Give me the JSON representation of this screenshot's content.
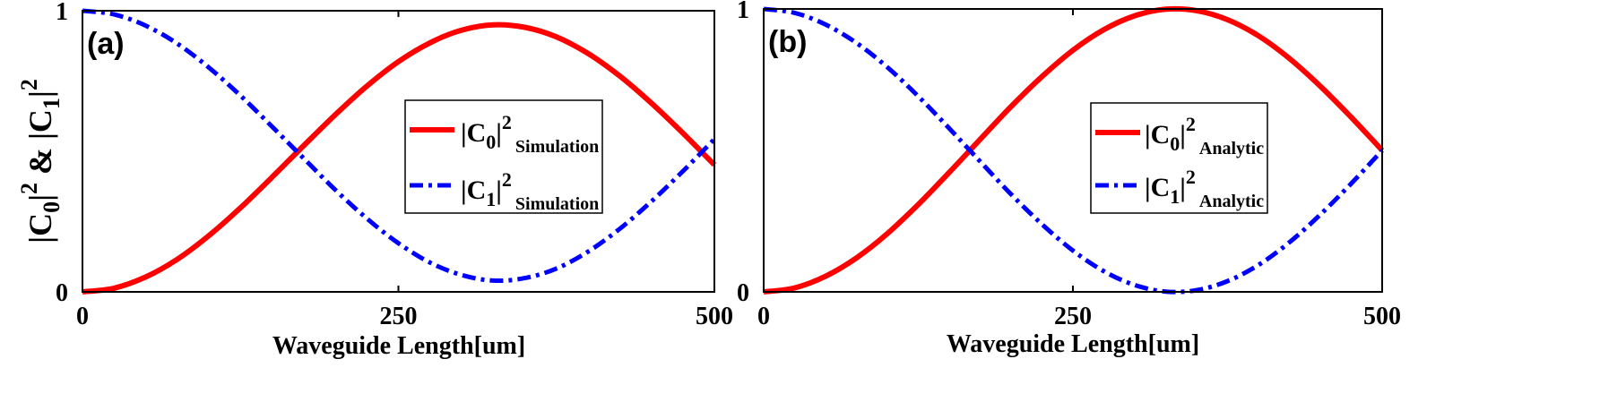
{
  "chart_data": [
    {
      "type": "line",
      "panel_label": "(a)",
      "xlabel": "Waveguide Length[um]",
      "ylabel": {
        "p1": "|C",
        "s1": "0",
        "p2": "|",
        "e1": "2",
        "p3": " & |C",
        "s2": "1",
        "p4": "|",
        "e2": "2"
      },
      "xlim": [
        0,
        500
      ],
      "ylim": [
        0,
        1
      ],
      "xticks": [
        0,
        250,
        500
      ],
      "yticks": [
        0,
        1
      ],
      "grid": false,
      "legend_position": "center-right",
      "x": [
        0,
        25,
        50,
        75,
        100,
        125,
        150,
        175,
        200,
        225,
        250,
        275,
        300,
        325,
        350,
        375,
        400,
        425,
        450,
        475,
        500
      ],
      "series": [
        {
          "legend": {
            "p1": "|C",
            "sub": "0",
            "p2": "|",
            "sup": "2",
            "tag": "Simulation"
          },
          "color": "#ff0000",
          "line_style": "solid",
          "y": [
            0.0,
            0.013,
            0.053,
            0.116,
            0.2,
            0.299,
            0.408,
            0.52,
            0.63,
            0.732,
            0.819,
            0.886,
            0.931,
            0.95,
            0.941,
            0.907,
            0.848,
            0.768,
            0.672,
            0.565,
            0.452
          ]
        },
        {
          "legend": {
            "p1": "|C",
            "sub": "1",
            "p2": "|",
            "sup": "2",
            "tag": "Simulation"
          },
          "color": "#0000ff",
          "line_style": "dash-dot",
          "y": [
            1.0,
            0.987,
            0.947,
            0.883,
            0.798,
            0.698,
            0.588,
            0.475,
            0.363,
            0.261,
            0.173,
            0.104,
            0.06,
            0.04,
            0.049,
            0.083,
            0.143,
            0.224,
            0.321,
            0.429,
            0.543
          ]
        }
      ]
    },
    {
      "type": "line",
      "panel_label": "(b)",
      "xlabel": "Waveguide Length[um]",
      "xlim": [
        0,
        500
      ],
      "ylim": [
        0,
        1
      ],
      "xticks": [
        0,
        250,
        500
      ],
      "yticks": [
        0,
        1
      ],
      "grid": false,
      "legend_position": "center-right",
      "x": [
        0,
        25,
        50,
        75,
        100,
        125,
        150,
        175,
        200,
        225,
        250,
        275,
        300,
        325,
        350,
        375,
        400,
        425,
        450,
        475,
        500
      ],
      "series": [
        {
          "legend": {
            "p1": "|C",
            "sub": "0",
            "p2": "|",
            "sup": "2",
            "tag": "Analytic"
          },
          "color": "#ff0000",
          "line_style": "solid",
          "y": [
            0.0,
            0.014,
            0.055,
            0.12,
            0.206,
            0.309,
            0.422,
            0.539,
            0.655,
            0.761,
            0.854,
            0.927,
            0.976,
            0.999,
            0.994,
            0.962,
            0.905,
            0.825,
            0.727,
            0.617,
            0.5
          ]
        },
        {
          "legend": {
            "p1": "|C",
            "sub": "1",
            "p2": "|",
            "sup": "2",
            "tag": "Analytic"
          },
          "color": "#0000ff",
          "line_style": "dash-dot",
          "y": [
            1.0,
            0.986,
            0.945,
            0.88,
            0.794,
            0.691,
            0.578,
            0.461,
            0.345,
            0.239,
            0.146,
            0.073,
            0.024,
            0.001,
            0.006,
            0.038,
            0.095,
            0.175,
            0.273,
            0.383,
            0.5
          ]
        }
      ]
    }
  ]
}
